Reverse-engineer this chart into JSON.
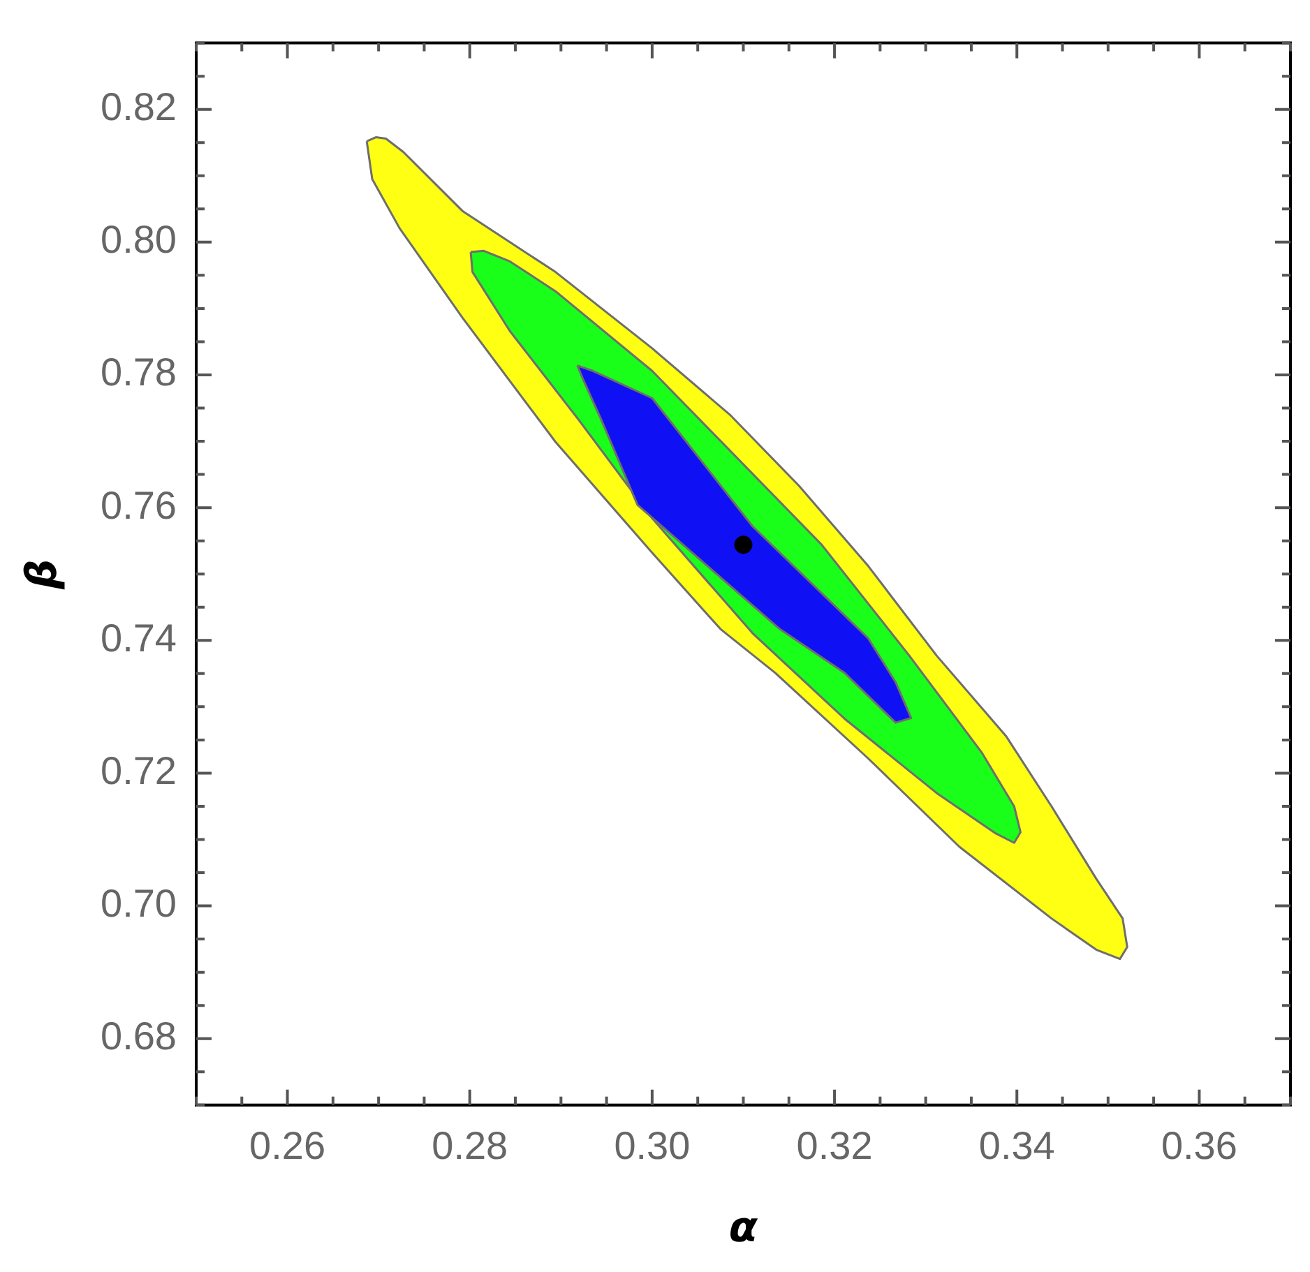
{
  "chart_data": {
    "type": "area",
    "xlabel": "α",
    "ylabel": "β",
    "xlim": [
      0.25,
      0.37
    ],
    "ylim": [
      0.67,
      0.83
    ],
    "xticks": [
      {
        "value": 0.25,
        "label": null
      },
      {
        "value": 0.255,
        "label": null
      },
      0.26,
      {
        "value": 0.265,
        "label": null
      },
      {
        "value": 0.27,
        "label": null
      },
      {
        "value": 0.275,
        "label": null
      },
      0.28,
      {
        "value": 0.285,
        "label": null
      },
      {
        "value": 0.29,
        "label": null
      },
      {
        "value": 0.295,
        "label": null
      },
      {
        "value": 0.3,
        "label": "0.30"
      },
      {
        "value": 0.305,
        "label": null
      },
      {
        "value": 0.31,
        "label": null
      },
      {
        "value": 0.315,
        "label": null
      },
      0.32,
      {
        "value": 0.325,
        "label": null
      },
      {
        "value": 0.33,
        "label": null
      },
      {
        "value": 0.335,
        "label": null
      },
      0.34,
      {
        "value": 0.345,
        "label": null
      },
      {
        "value": 0.35,
        "label": null
      },
      {
        "value": 0.355,
        "label": null
      },
      0.36,
      {
        "value": 0.365,
        "label": null
      },
      {
        "value": 0.37,
        "label": null
      }
    ],
    "yticks": [
      {
        "value": 0.67,
        "label": null
      },
      {
        "value": 0.675,
        "label": null
      },
      0.68,
      {
        "value": 0.685,
        "label": null
      },
      {
        "value": 0.69,
        "label": null
      },
      {
        "value": 0.695,
        "label": null
      },
      {
        "value": 0.7,
        "label": "0.70"
      },
      {
        "value": 0.705,
        "label": null
      },
      {
        "value": 0.71,
        "label": null
      },
      {
        "value": 0.715,
        "label": null
      },
      0.72,
      {
        "value": 0.725,
        "label": null
      },
      {
        "value": 0.73,
        "label": null
      },
      {
        "value": 0.735,
        "label": null
      },
      0.74,
      {
        "value": 0.745,
        "label": null
      },
      {
        "value": 0.75,
        "label": null
      },
      {
        "value": 0.755,
        "label": null
      },
      0.76,
      {
        "value": 0.765,
        "label": null
      },
      {
        "value": 0.77,
        "label": null
      },
      {
        "value": 0.775,
        "label": null
      },
      0.78,
      {
        "value": 0.785,
        "label": null
      },
      {
        "value": 0.79,
        "label": null
      },
      {
        "value": 0.795,
        "label": null
      },
      {
        "value": 0.8,
        "label": "0.80"
      },
      {
        "value": 0.805,
        "label": null
      },
      {
        "value": 0.81,
        "label": null
      },
      {
        "value": 0.815,
        "label": null
      },
      0.82,
      {
        "value": 0.825,
        "label": null
      },
      {
        "value": 0.83,
        "label": null
      }
    ],
    "grid": false,
    "legend": false,
    "series": [
      {
        "color": "#ffff14",
        "x": [
          0.2687,
          0.2697,
          0.2708,
          0.2727,
          0.2792,
          0.2894,
          0.3,
          0.3086,
          0.3161,
          0.3237,
          0.3312,
          0.3388,
          0.3438,
          0.3487,
          0.3516,
          0.3521,
          0.3513,
          0.3487,
          0.3438,
          0.3337,
          0.3237,
          0.3135,
          0.3075,
          0.3,
          0.2894,
          0.2792,
          0.2723,
          0.2693
        ],
        "values": [
          0.8152,
          0.8158,
          0.8156,
          0.8136,
          0.8047,
          0.7955,
          0.784,
          0.7739,
          0.7633,
          0.7512,
          0.7377,
          0.7256,
          0.715,
          0.7041,
          0.6981,
          0.6938,
          0.692,
          0.6934,
          0.6981,
          0.7089,
          0.7222,
          0.7351,
          0.7417,
          0.7532,
          0.7699,
          0.7886,
          0.8021,
          0.8095
        ]
      },
      {
        "color": "#1aff1a",
        "x": [
          0.2801,
          0.2815,
          0.2844,
          0.2894,
          0.3,
          0.3086,
          0.3186,
          0.3282,
          0.3362,
          0.3397,
          0.3404,
          0.3397,
          0.3377,
          0.3312,
          0.3211,
          0.311,
          0.3,
          0.2919,
          0.2844,
          0.2803
        ],
        "values": [
          0.7985,
          0.7987,
          0.7971,
          0.7926,
          0.7806,
          0.7685,
          0.7544,
          0.7377,
          0.723,
          0.715,
          0.7111,
          0.7095,
          0.7109,
          0.717,
          0.7282,
          0.7411,
          0.7584,
          0.7733,
          0.7866,
          0.7955
        ]
      },
      {
        "color": "#1010f5",
        "x": [
          0.2918,
          0.2935,
          0.3,
          0.311,
          0.3237,
          0.3267,
          0.3284,
          0.3267,
          0.3211,
          0.314,
          0.2984,
          0.2944,
          0.2924
        ],
        "values": [
          0.7814,
          0.7806,
          0.7765,
          0.7572,
          0.7403,
          0.7337,
          0.7283,
          0.7276,
          0.7351,
          0.7417,
          0.7604,
          0.7733,
          0.7794
        ]
      },
      {
        "type": "scatter",
        "marker": "circle",
        "color": "#000000",
        "x": [
          0.31
        ],
        "values": [
          0.7544
        ]
      }
    ]
  }
}
